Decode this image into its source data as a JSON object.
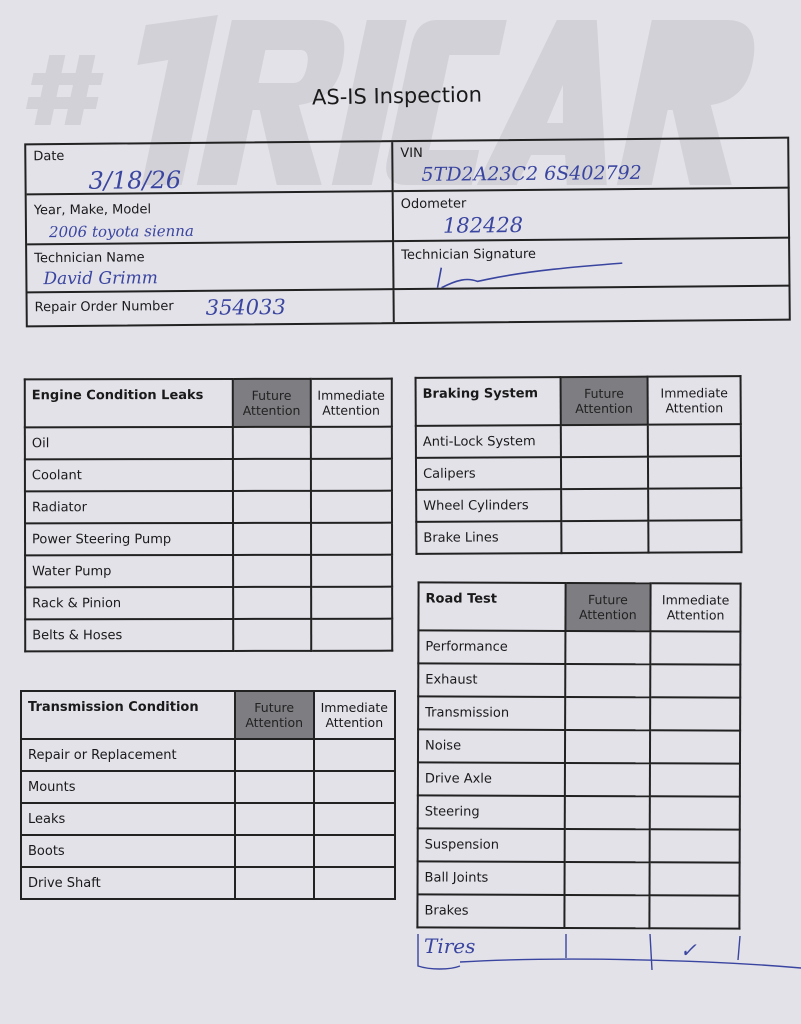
{
  "watermark": "#1RICART",
  "title": "AS-IS Inspection",
  "header": {
    "date_label": "Date",
    "date_value": "3/18/26",
    "vin_label": "VIN",
    "vin_value": "5TD2A23C2 6S402792",
    "ymm_label": "Year, Make, Model",
    "ymm_value": "2006 toyota sienna",
    "odometer_label": "Odometer",
    "odometer_value": "182428",
    "tech_name_label": "Technician Name",
    "tech_name_value": "David Grimm",
    "tech_sig_label": "Technician Signature",
    "ro_label": "Repair Order Number",
    "ro_value": "354033"
  },
  "columns": {
    "future": "Future Attention",
    "immediate": "Immediate Attention"
  },
  "engine": {
    "title": "Engine Condition Leaks",
    "rows": [
      "Oil",
      "Coolant",
      "Radiator",
      "Power Steering Pump",
      "Water Pump",
      "Rack & Pinion",
      "Belts & Hoses"
    ]
  },
  "braking": {
    "title": "Braking System",
    "rows": [
      "Anti-Lock System",
      "Calipers",
      "Wheel Cylinders",
      "Brake Lines"
    ]
  },
  "transmission": {
    "title": "Transmission Condition",
    "rows": [
      "Repair or Replacement",
      "Mounts",
      "Leaks",
      "Boots",
      "Drive Shaft"
    ]
  },
  "road_test": {
    "title": "Road Test",
    "rows": [
      "Performance",
      "Exhaust",
      "Transmission",
      "Noise",
      "Drive Axle",
      "Steering",
      "Suspension",
      "Ball Joints",
      "Brakes"
    ]
  },
  "handwritten_row": {
    "label": "Tires",
    "immediate_mark": "✓"
  }
}
